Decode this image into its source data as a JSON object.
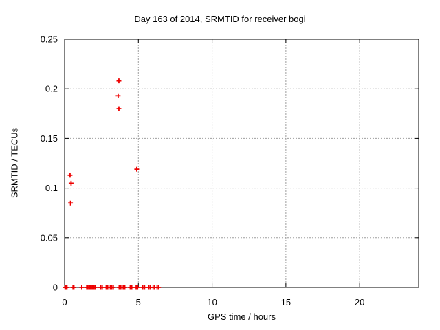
{
  "chart_data": {
    "type": "scatter",
    "title": "Day 163 of 2014, SRMTID for receiver bogi",
    "xlabel": "GPS time / hours",
    "ylabel": "SRMTID / TECUs",
    "xlim": [
      0,
      24
    ],
    "ylim": [
      0,
      0.25
    ],
    "xticks": [
      0,
      5,
      10,
      15,
      20
    ],
    "xtick_labels": [
      "0",
      "5",
      "10",
      "15",
      "20"
    ],
    "yticks": [
      0,
      0.05,
      0.1,
      0.15,
      0.2,
      0.25
    ],
    "ytick_labels": [
      "0",
      "0.05",
      "0.1",
      "0.15",
      "0.2",
      "0.25"
    ],
    "grid": true,
    "legend_position": "none",
    "marker_color": "#ee0000",
    "grid_color": "#9e9e9e",
    "axis_color": "#000000",
    "background_color": "#ffffff",
    "series": [
      {
        "name": "SRMTID",
        "marker": "plus",
        "points": [
          [
            0.37,
            0.113
          ],
          [
            0.44,
            0.105
          ],
          [
            0.4,
            0.085
          ],
          [
            3.63,
            0.193
          ],
          [
            3.68,
            0.208
          ],
          [
            3.68,
            0.18
          ],
          [
            4.89,
            0.119
          ],
          [
            0.03,
            0
          ],
          [
            0.1,
            0
          ],
          [
            0.16,
            0
          ],
          [
            0.57,
            0
          ],
          [
            0.63,
            0
          ],
          [
            1.16,
            0
          ],
          [
            1.5,
            0
          ],
          [
            1.58,
            0
          ],
          [
            1.66,
            0
          ],
          [
            1.74,
            0
          ],
          [
            1.82,
            0
          ],
          [
            1.9,
            0
          ],
          [
            1.98,
            0
          ],
          [
            2.06,
            0
          ],
          [
            2.45,
            0
          ],
          [
            2.55,
            0
          ],
          [
            2.82,
            0
          ],
          [
            2.92,
            0
          ],
          [
            3.1,
            0
          ],
          [
            3.2,
            0
          ],
          [
            3.3,
            0
          ],
          [
            3.7,
            0
          ],
          [
            3.8,
            0
          ],
          [
            3.9,
            0
          ],
          [
            4.0,
            0
          ],
          [
            4.08,
            0
          ],
          [
            4.45,
            0
          ],
          [
            4.55,
            0
          ],
          [
            4.85,
            0
          ],
          [
            4.95,
            0
          ],
          [
            5.3,
            0
          ],
          [
            5.42,
            0
          ],
          [
            5.72,
            0
          ],
          [
            5.82,
            0
          ],
          [
            6.0,
            0
          ],
          [
            6.1,
            0
          ],
          [
            6.27,
            0
          ],
          [
            6.37,
            0
          ]
        ]
      }
    ]
  }
}
